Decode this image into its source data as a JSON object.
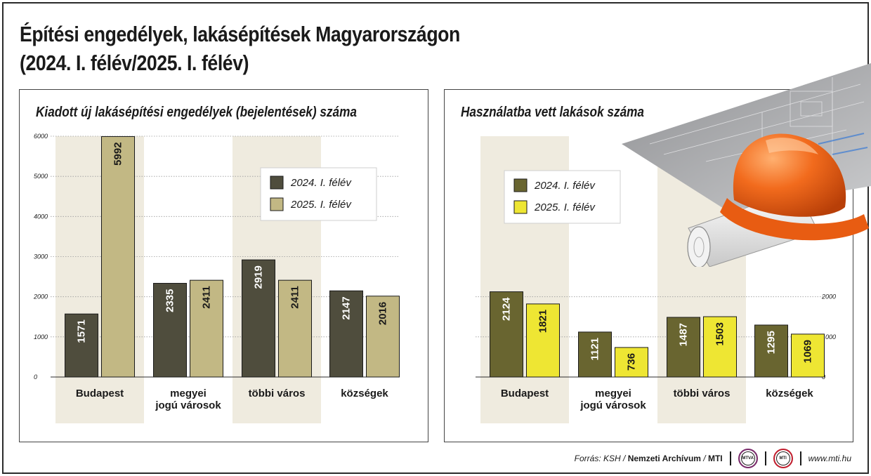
{
  "title": {
    "line1": "Építési engedélyek, lakásépítések Magyarországon",
    "line2": "(2024. I. félév/2025. I. félév)"
  },
  "colors": {
    "band": "#efebdf",
    "left_2024": "#4f4d3d",
    "left_2025": "#c2b884",
    "right_2024": "#696530",
    "right_2025": "#eee633",
    "grid": "#9a9a9a"
  },
  "chart_data": [
    {
      "type": "bar",
      "title": "Kiadott új lakásépítési engedélyek (bejelentések) száma",
      "categories": [
        "Budapest",
        "megyei\njogú városok",
        "többi város",
        "községek"
      ],
      "series": [
        {
          "name": "2024. I. félév",
          "values": [
            1571,
            2335,
            2919,
            2147
          ]
        },
        {
          "name": "2025. I. félév",
          "values": [
            5992,
            2411,
            2411,
            2016
          ]
        }
      ],
      "y_ticks": [
        "0",
        "1000",
        "2000",
        "3000",
        "4000",
        "5000",
        "6000"
      ],
      "ylim": [
        0,
        6000
      ],
      "grid": true,
      "legend": "center-right"
    },
    {
      "type": "bar",
      "title": "Használatba vett lakások száma",
      "categories": [
        "Budapest",
        "megyei\njogú városok",
        "többi város",
        "községek"
      ],
      "series": [
        {
          "name": "2024. I. félév",
          "values": [
            2124,
            1121,
            1487,
            1295
          ]
        },
        {
          "name": "2025. I. félév",
          "values": [
            1821,
            736,
            1503,
            1069
          ]
        }
      ],
      "y_ticks": [
        "0",
        "1000",
        "2000"
      ],
      "ylim": [
        0,
        6000
      ],
      "grid": true,
      "legend": "upper-left"
    }
  ],
  "footer": {
    "source_prefix": "Forrás: KSH /",
    "source_bold": "Nemzeti Archívum",
    "source_sep": "/",
    "source_mti": "MTI",
    "logo1": "MTVA",
    "logo2": "MTI",
    "url": "www.mti.hu"
  },
  "icons": [
    "hard-hat-icon",
    "blueprint-roll-icon"
  ]
}
